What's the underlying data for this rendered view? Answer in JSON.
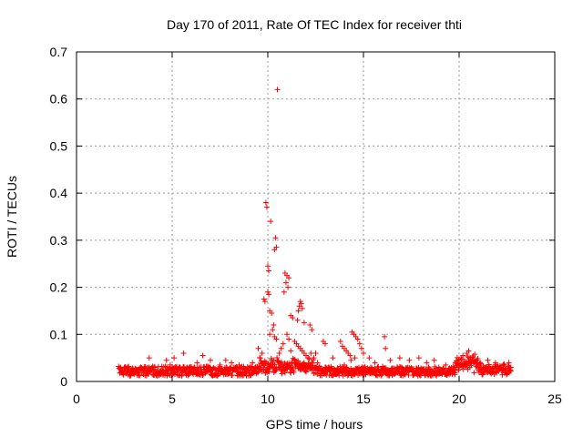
{
  "chart_data": {
    "type": "scatter",
    "title": "Day 170 of 2011, Rate Of TEC Index for receiver thti",
    "xlabel": "GPS time / hours",
    "ylabel": "ROTI / TECUs",
    "xlim": [
      0,
      25
    ],
    "ylim": [
      0,
      0.7
    ],
    "xticks": [
      "0",
      "5",
      "10",
      "15",
      "20",
      "25"
    ],
    "yticks": [
      "0",
      "0.1",
      "0.2",
      "0.3",
      "0.4",
      "0.5",
      "0.6",
      "0.7"
    ],
    "grid": true,
    "marker": "+",
    "color": "#ff0000",
    "series": [
      {
        "name": "ROTI",
        "points": [
          [
            10.5,
            0.62
          ],
          [
            9.9,
            0.38
          ],
          [
            9.95,
            0.37
          ],
          [
            10.15,
            0.34
          ],
          [
            10.4,
            0.305
          ],
          [
            10.45,
            0.285
          ],
          [
            10.35,
            0.28
          ],
          [
            10.0,
            0.245
          ],
          [
            10.05,
            0.235
          ],
          [
            10.9,
            0.23
          ],
          [
            11.0,
            0.225
          ],
          [
            11.1,
            0.22
          ],
          [
            10.95,
            0.21
          ],
          [
            11.05,
            0.2
          ],
          [
            10.85,
            0.19
          ],
          [
            10.0,
            0.19
          ],
          [
            10.05,
            0.185
          ],
          [
            9.8,
            0.175
          ],
          [
            9.85,
            0.17
          ],
          [
            11.7,
            0.17
          ],
          [
            11.75,
            0.165
          ],
          [
            11.65,
            0.16
          ],
          [
            11.8,
            0.155
          ],
          [
            11.6,
            0.15
          ],
          [
            10.1,
            0.15
          ],
          [
            10.2,
            0.145
          ],
          [
            11.2,
            0.14
          ],
          [
            11.3,
            0.135
          ],
          [
            11.55,
            0.13
          ],
          [
            11.9,
            0.125
          ],
          [
            12.2,
            0.12
          ],
          [
            12.3,
            0.11
          ],
          [
            10.3,
            0.12
          ],
          [
            10.25,
            0.11
          ],
          [
            10.1,
            0.1
          ],
          [
            10.35,
            0.095
          ],
          [
            10.45,
            0.09
          ],
          [
            11.0,
            0.1
          ],
          [
            11.1,
            0.09
          ],
          [
            11.4,
            0.085
          ],
          [
            11.5,
            0.08
          ],
          [
            11.6,
            0.075
          ],
          [
            11.7,
            0.07
          ],
          [
            11.8,
            0.065
          ],
          [
            11.9,
            0.06
          ],
          [
            12.0,
            0.055
          ],
          [
            12.1,
            0.05
          ],
          [
            12.25,
            0.06
          ],
          [
            12.4,
            0.05
          ],
          [
            12.6,
            0.04
          ],
          [
            12.9,
            0.085
          ],
          [
            13.0,
            0.08
          ],
          [
            13.8,
            0.085
          ],
          [
            13.9,
            0.075
          ],
          [
            14.0,
            0.07
          ],
          [
            14.1,
            0.065
          ],
          [
            14.2,
            0.06
          ],
          [
            14.3,
            0.055
          ],
          [
            14.4,
            0.105
          ],
          [
            14.5,
            0.1
          ],
          [
            14.6,
            0.095
          ],
          [
            14.7,
            0.09
          ],
          [
            14.8,
            0.08
          ],
          [
            14.9,
            0.07
          ],
          [
            15.0,
            0.06
          ],
          [
            16.1,
            0.095
          ],
          [
            16.15,
            0.07
          ],
          [
            14.35,
            0.045
          ],
          [
            14.55,
            0.05
          ],
          [
            3.8,
            0.05
          ],
          [
            4.7,
            0.045
          ],
          [
            5.1,
            0.05
          ],
          [
            5.6,
            0.06
          ],
          [
            6.3,
            0.04
          ],
          [
            6.6,
            0.055
          ],
          [
            7.0,
            0.045
          ],
          [
            7.8,
            0.045
          ],
          [
            8.1,
            0.04
          ],
          [
            8.5,
            0.035
          ],
          [
            9.2,
            0.04
          ],
          [
            9.6,
            0.05
          ],
          [
            9.5,
            0.07
          ],
          [
            9.7,
            0.06
          ],
          [
            10.6,
            0.06
          ],
          [
            10.7,
            0.07
          ],
          [
            10.8,
            0.08
          ],
          [
            11.2,
            0.065
          ],
          [
            12.5,
            0.06
          ],
          [
            13.4,
            0.05
          ],
          [
            15.3,
            0.05
          ],
          [
            15.6,
            0.04
          ],
          [
            16.4,
            0.045
          ],
          [
            16.9,
            0.05
          ],
          [
            17.4,
            0.045
          ],
          [
            17.9,
            0.05
          ],
          [
            18.3,
            0.04
          ],
          [
            18.7,
            0.045
          ],
          [
            19.3,
            0.035
          ],
          [
            19.8,
            0.04
          ],
          [
            20.1,
            0.05
          ],
          [
            20.2,
            0.055
          ],
          [
            20.4,
            0.06
          ],
          [
            20.5,
            0.065
          ],
          [
            20.6,
            0.05
          ],
          [
            20.8,
            0.045
          ],
          [
            21.1,
            0.04
          ],
          [
            21.5,
            0.045
          ],
          [
            21.9,
            0.04
          ],
          [
            22.3,
            0.035
          ],
          [
            22.6,
            0.04
          ],
          [
            2.3,
            0.03
          ],
          [
            2.5,
            0.028
          ],
          [
            3.2,
            0.025
          ],
          [
            4.1,
            0.03
          ],
          [
            4.9,
            0.035
          ],
          [
            5.9,
            0.03
          ],
          [
            6.9,
            0.032
          ],
          [
            7.5,
            0.035
          ],
          [
            8.4,
            0.028
          ],
          [
            9.1,
            0.03
          ],
          [
            13.0,
            0.03
          ],
          [
            14.0,
            0.035
          ],
          [
            15.0,
            0.03
          ],
          [
            16.0,
            0.032
          ],
          [
            17.0,
            0.03
          ],
          [
            18.0,
            0.028
          ],
          [
            19.0,
            0.025
          ],
          [
            19.5,
            0.02
          ],
          [
            20.0,
            0.03
          ],
          [
            21.0,
            0.03
          ],
          [
            22.0,
            0.032
          ],
          [
            22.7,
            0.03
          ]
        ]
      }
    ]
  }
}
